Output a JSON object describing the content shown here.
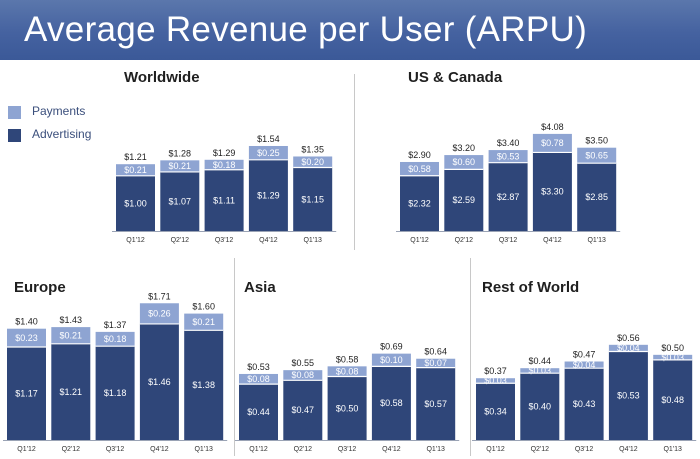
{
  "header": {
    "title": "Average Revenue per User (ARPU)"
  },
  "colors": {
    "payments": "#8ea4d2",
    "advertising": "#2f4679",
    "header": "#3b5998"
  },
  "legend": {
    "items": [
      {
        "label": "Payments",
        "color": "#8ea4d2"
      },
      {
        "label": "Advertising",
        "color": "#2f4679"
      }
    ]
  },
  "chart_data": [
    {
      "type": "bar",
      "stacked": true,
      "title": "Worldwide",
      "categories": [
        "Q1'12",
        "Q2'12",
        "Q3'12",
        "Q4'12",
        "Q1'13"
      ],
      "series": [
        {
          "name": "Advertising",
          "values": [
            1.0,
            1.07,
            1.11,
            1.29,
            1.15
          ],
          "labels": [
            "$1.00",
            "$1.07",
            "$1.11",
            "$1.29",
            "$1.15"
          ]
        },
        {
          "name": "Payments",
          "values": [
            0.21,
            0.21,
            0.18,
            0.25,
            0.2
          ],
          "labels": [
            "$0.21",
            "$0.21",
            "$0.18",
            "$0.25",
            "$0.20"
          ]
        }
      ],
      "totals": [
        "$1.21",
        "$1.28",
        "$1.29",
        "$1.54",
        "$1.35"
      ]
    },
    {
      "type": "bar",
      "stacked": true,
      "title": "US & Canada",
      "categories": [
        "Q1'12",
        "Q2'12",
        "Q3'12",
        "Q4'12",
        "Q1'13"
      ],
      "series": [
        {
          "name": "Advertising",
          "values": [
            2.32,
            2.59,
            2.87,
            3.3,
            2.85
          ],
          "labels": [
            "$2.32",
            "$2.59",
            "$2.87",
            "$3.30",
            "$2.85"
          ]
        },
        {
          "name": "Payments",
          "values": [
            0.58,
            0.6,
            0.53,
            0.78,
            0.65
          ],
          "labels": [
            "$0.58",
            "$0.60",
            "$0.53",
            "$0.78",
            "$0.65"
          ]
        }
      ],
      "totals": [
        "$2.90",
        "$3.20",
        "$3.40",
        "$4.08",
        "$3.50"
      ]
    },
    {
      "type": "bar",
      "stacked": true,
      "title": "Europe",
      "categories": [
        "Q1'12",
        "Q2'12",
        "Q3'12",
        "Q4'12",
        "Q1'13"
      ],
      "series": [
        {
          "name": "Advertising",
          "values": [
            1.17,
            1.21,
            1.18,
            1.46,
            1.38
          ],
          "labels": [
            "$1.17",
            "$1.21",
            "$1.18",
            "$1.46",
            "$1.38"
          ]
        },
        {
          "name": "Payments",
          "values": [
            0.23,
            0.21,
            0.18,
            0.26,
            0.21
          ],
          "labels": [
            "$0.23",
            "$0.21",
            "$0.18",
            "$0.26",
            "$0.21"
          ]
        }
      ],
      "totals": [
        "$1.40",
        "$1.43",
        "$1.37",
        "$1.71",
        "$1.60"
      ]
    },
    {
      "type": "bar",
      "stacked": true,
      "title": "Asia",
      "categories": [
        "Q1'12",
        "Q2'12",
        "Q3'12",
        "Q4'12",
        "Q1'13"
      ],
      "series": [
        {
          "name": "Advertising",
          "values": [
            0.44,
            0.47,
            0.5,
            0.58,
            0.57
          ],
          "labels": [
            "$0.44",
            "$0.47",
            "$0.50",
            "$0.58",
            "$0.57"
          ]
        },
        {
          "name": "Payments",
          "values": [
            0.08,
            0.08,
            0.08,
            0.1,
            0.07
          ],
          "labels": [
            "$0.08",
            "$0.08",
            "$0.08",
            "$0.10",
            "$0.07"
          ]
        }
      ],
      "totals": [
        "$0.53",
        "$0.55",
        "$0.58",
        "$0.69",
        "$0.64"
      ]
    },
    {
      "type": "bar",
      "stacked": true,
      "title": "Rest of World",
      "categories": [
        "Q1'12",
        "Q2'12",
        "Q3'12",
        "Q4'12",
        "Q1'13"
      ],
      "series": [
        {
          "name": "Advertising",
          "values": [
            0.34,
            0.4,
            0.43,
            0.53,
            0.48
          ],
          "labels": [
            "$0.34",
            "$0.40",
            "$0.43",
            "$0.53",
            "$0.48"
          ]
        },
        {
          "name": "Payments",
          "values": [
            0.03,
            0.03,
            0.04,
            0.04,
            0.03
          ],
          "labels": [
            "$0.03",
            "$0.03",
            "$0.04",
            "$0.04",
            "$0.03"
          ]
        }
      ],
      "totals": [
        "$0.37",
        "$0.44",
        "$0.47",
        "$0.56",
        "$0.50"
      ]
    }
  ]
}
